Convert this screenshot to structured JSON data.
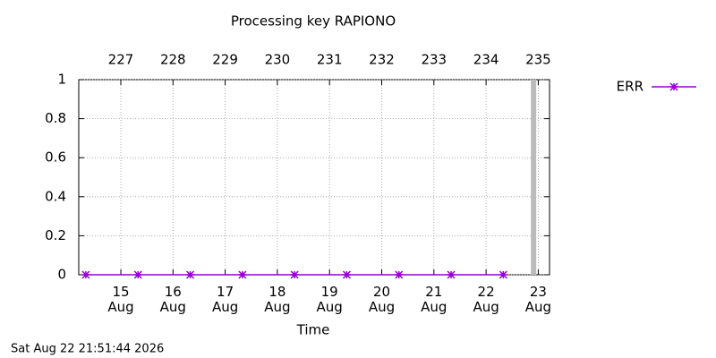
{
  "chart_data": {
    "type": "line",
    "title": "Processing key RAPIONO",
    "xlabel": "Time",
    "timestamp": "Sat Aug 22 21:51:44 2026",
    "x": [
      14.33,
      15.33,
      16.33,
      17.33,
      18.33,
      19.33,
      20.33,
      21.33,
      22.33
    ],
    "series": [
      {
        "name": "ERR",
        "color": "#9400d3",
        "values": [
          0,
          0,
          0,
          0,
          0,
          0,
          0,
          0,
          0
        ]
      }
    ],
    "xlim": [
      14.194,
      23.216
    ],
    "xticks": [
      {
        "value": 15,
        "label": "15\nAug"
      },
      {
        "value": 16,
        "label": "16\nAug"
      },
      {
        "value": 17,
        "label": "17\nAug"
      },
      {
        "value": 18,
        "label": "18\nAug"
      },
      {
        "value": 19,
        "label": "19\nAug"
      },
      {
        "value": 20,
        "label": "20\nAug"
      },
      {
        "value": 21,
        "label": "21\nAug"
      },
      {
        "value": 22,
        "label": "22\nAug"
      },
      {
        "value": 23,
        "label": "23\nAug"
      }
    ],
    "x2lim": [
      226.194,
      235.216
    ],
    "x2ticks": [
      227,
      228,
      229,
      230,
      231,
      232,
      233,
      234,
      235
    ],
    "ylim": [
      0,
      1
    ],
    "yticks": [
      0,
      0.2,
      0.4,
      0.6,
      0.8,
      1
    ],
    "now_marker": 22.91,
    "grid": true,
    "legend": "top-right"
  }
}
